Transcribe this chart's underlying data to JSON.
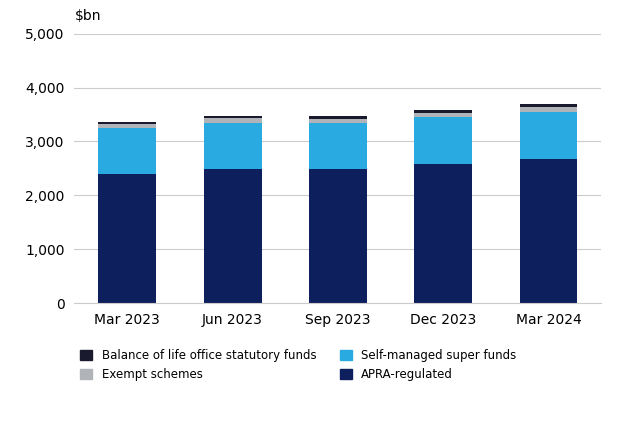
{
  "categories": [
    "Mar 2023",
    "Jun 2023",
    "Sep 2023",
    "Dec 2023",
    "Mar 2024"
  ],
  "apra_regulated": [
    2390,
    2480,
    2480,
    2580,
    2680
  ],
  "self_managed": [
    860,
    870,
    870,
    870,
    870
  ],
  "exempt_schemes": [
    70,
    80,
    75,
    80,
    90
  ],
  "life_office": [
    40,
    45,
    45,
    45,
    55
  ],
  "colors": {
    "apra_regulated": "#0d1f5c",
    "self_managed": "#29abe2",
    "exempt_schemes": "#b0b3b8",
    "life_office": "#1a1a2e"
  },
  "ylabel": "$bn",
  "ylim": [
    0,
    5000
  ],
  "yticks": [
    0,
    1000,
    2000,
    3000,
    4000,
    5000
  ],
  "legend_labels": {
    "life_office": "Balance of life office statutory funds",
    "exempt_schemes": "Exempt schemes",
    "self_managed": "Self-managed super funds",
    "apra_regulated": "APRA-regulated"
  },
  "background_color": "#ffffff",
  "grid_color": "#cccccc"
}
